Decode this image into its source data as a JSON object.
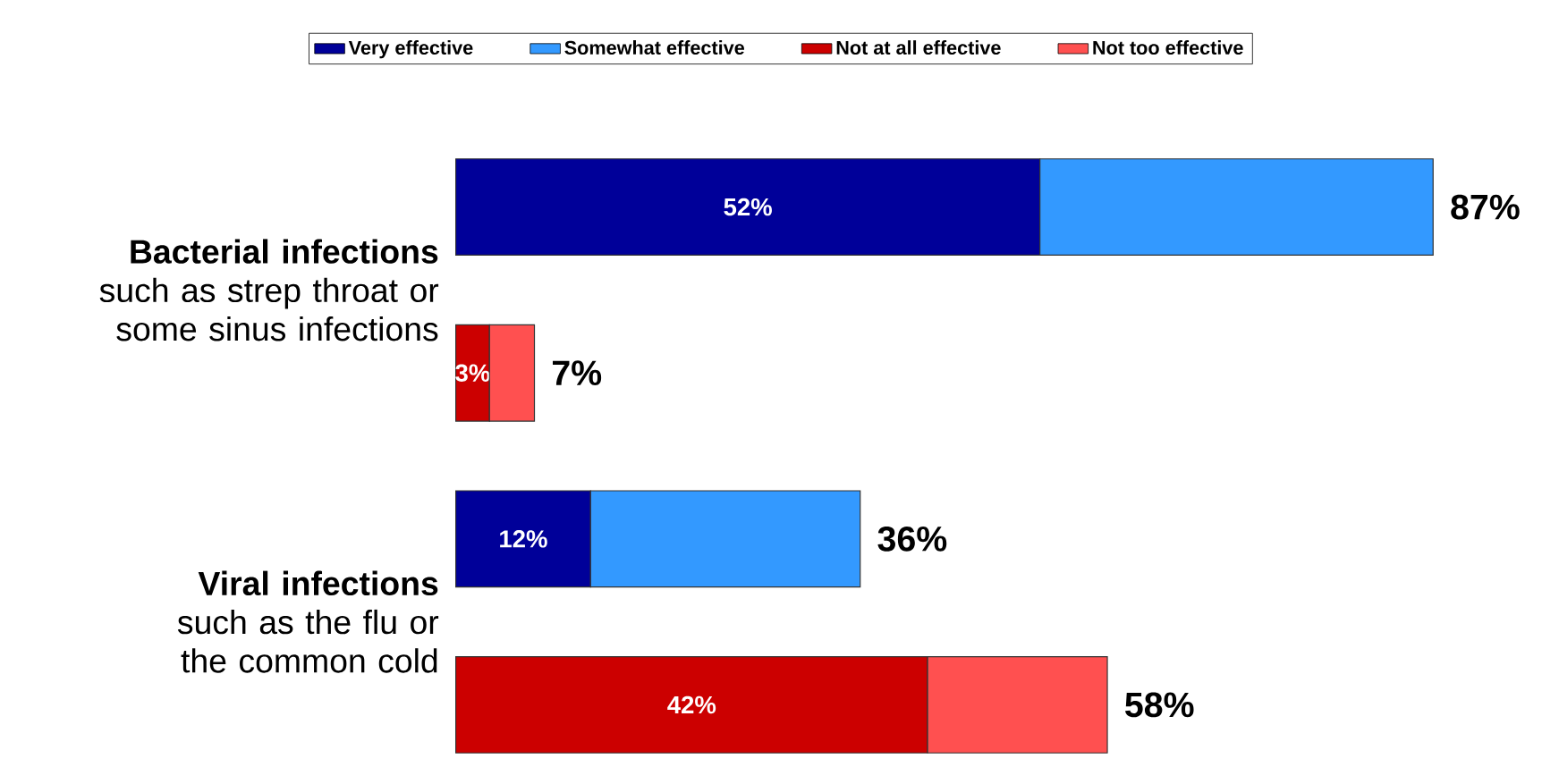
{
  "chart_data": {
    "type": "bar",
    "orientation": "horizontal",
    "stacked": true,
    "legend": "top",
    "categories": [
      "**Bacterial infections** such as strep throat or some sinus infections",
      null,
      "**Viral infections** such as the flu or the common cold",
      null
    ],
    "series": [
      {
        "name": "Very effective",
        "color": "#000099",
        "values": [
          52,
          null,
          12,
          null
        ],
        "value_labels": [
          "52%",
          null,
          "12%",
          null
        ]
      },
      {
        "name": "Somewhat effective",
        "color": "#3399ff",
        "values": [
          35,
          null,
          24,
          null
        ]
      },
      {
        "name": "Not at all effective",
        "color": "#cc0000",
        "values": [
          null,
          3,
          null,
          42
        ],
        "value_labels": [
          null,
          "3%",
          null,
          "42%"
        ]
      },
      {
        "name": "Not too effective",
        "color": "#ff5050",
        "values": [
          null,
          4,
          null,
          16
        ]
      }
    ],
    "totals": [
      "87%",
      "7%",
      "36%",
      "58%"
    ]
  }
}
